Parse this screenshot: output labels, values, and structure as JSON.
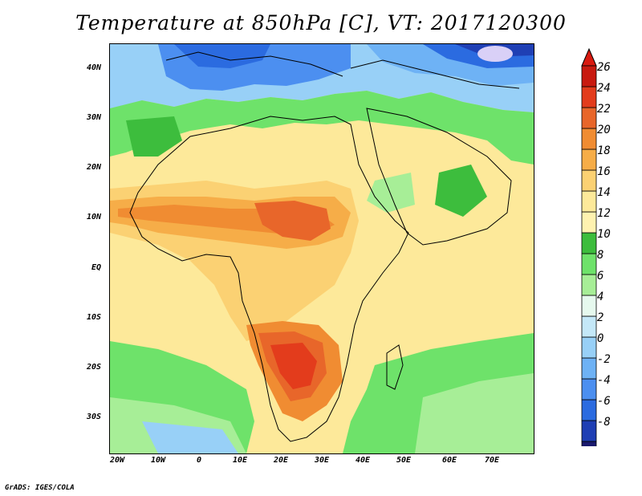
{
  "title": "Temperature at 850hPa [C], VT: 2017120300",
  "credit": "GrADS: IGES/COLA",
  "map": {
    "projection": "latlon",
    "lon_range": [
      -24,
      80
    ],
    "lat_range": [
      -37,
      46
    ],
    "lat_labels": [
      "40N",
      "30N",
      "20N",
      "10N",
      "EQ",
      "10S",
      "20S",
      "30S"
    ],
    "lon_labels": [
      "20W",
      "10W",
      "0",
      "10E",
      "20E",
      "30E",
      "40E",
      "50E",
      "60E",
      "70E"
    ],
    "lat_ticks": [
      40,
      30,
      20,
      10,
      0,
      -10,
      -20,
      -30
    ],
    "lon_ticks": [
      -20,
      -10,
      0,
      10,
      20,
      30,
      40,
      50,
      60,
      70
    ]
  },
  "colorbar": {
    "unit": "C",
    "labels": [
      "26",
      "24",
      "22",
      "20",
      "18",
      "16",
      "14",
      "12",
      "10",
      "8",
      "6",
      "4",
      "2",
      "0",
      "-2",
      "-4",
      "-6",
      "-8"
    ],
    "colors": [
      "#1a1a6e",
      "#1f3fb4",
      "#2b6be0",
      "#4c8ff0",
      "#6eb2f5",
      "#98d0f7",
      "#c4e8f8",
      "#e6f9ee",
      "#a7ee97",
      "#6ee26a",
      "#3dbd3d",
      "#fff2b0",
      "#fde99a",
      "#fbd173",
      "#f6ad48",
      "#f08c32",
      "#e8662a",
      "#e33c1c",
      "#c81a10"
    ],
    "under_color": "#d9d0f7",
    "over_color": "#d81a10"
  }
}
